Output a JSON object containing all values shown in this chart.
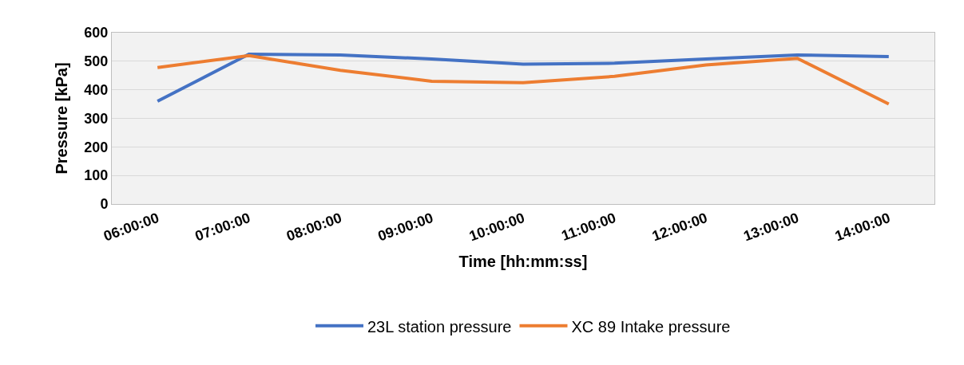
{
  "chart_data": {
    "type": "line",
    "xlabel": "Time [hh:mm:ss]",
    "ylabel": "Pressure [kPa]",
    "categories": [
      "06:00:00",
      "07:00:00",
      "08:00:00",
      "09:00:00",
      "10:00:00",
      "11:00:00",
      "12:00:00",
      "13:00:00",
      "14:00:00"
    ],
    "series": [
      {
        "name": "23L station pressure",
        "color": "#4472c4",
        "values": [
          360,
          525,
          522,
          508,
          490,
          493,
          508,
          522,
          516
        ]
      },
      {
        "name": "XC 89 Intake pressure",
        "color": "#ed7d31",
        "values": [
          478,
          520,
          468,
          430,
          425,
          447,
          487,
          510,
          350
        ]
      }
    ],
    "ylim": [
      0,
      600
    ],
    "yticks": [
      0,
      100,
      200,
      300,
      400,
      500,
      600
    ],
    "grid": "y",
    "legend": "bottom",
    "marker": "none",
    "line_style": "solid"
  }
}
